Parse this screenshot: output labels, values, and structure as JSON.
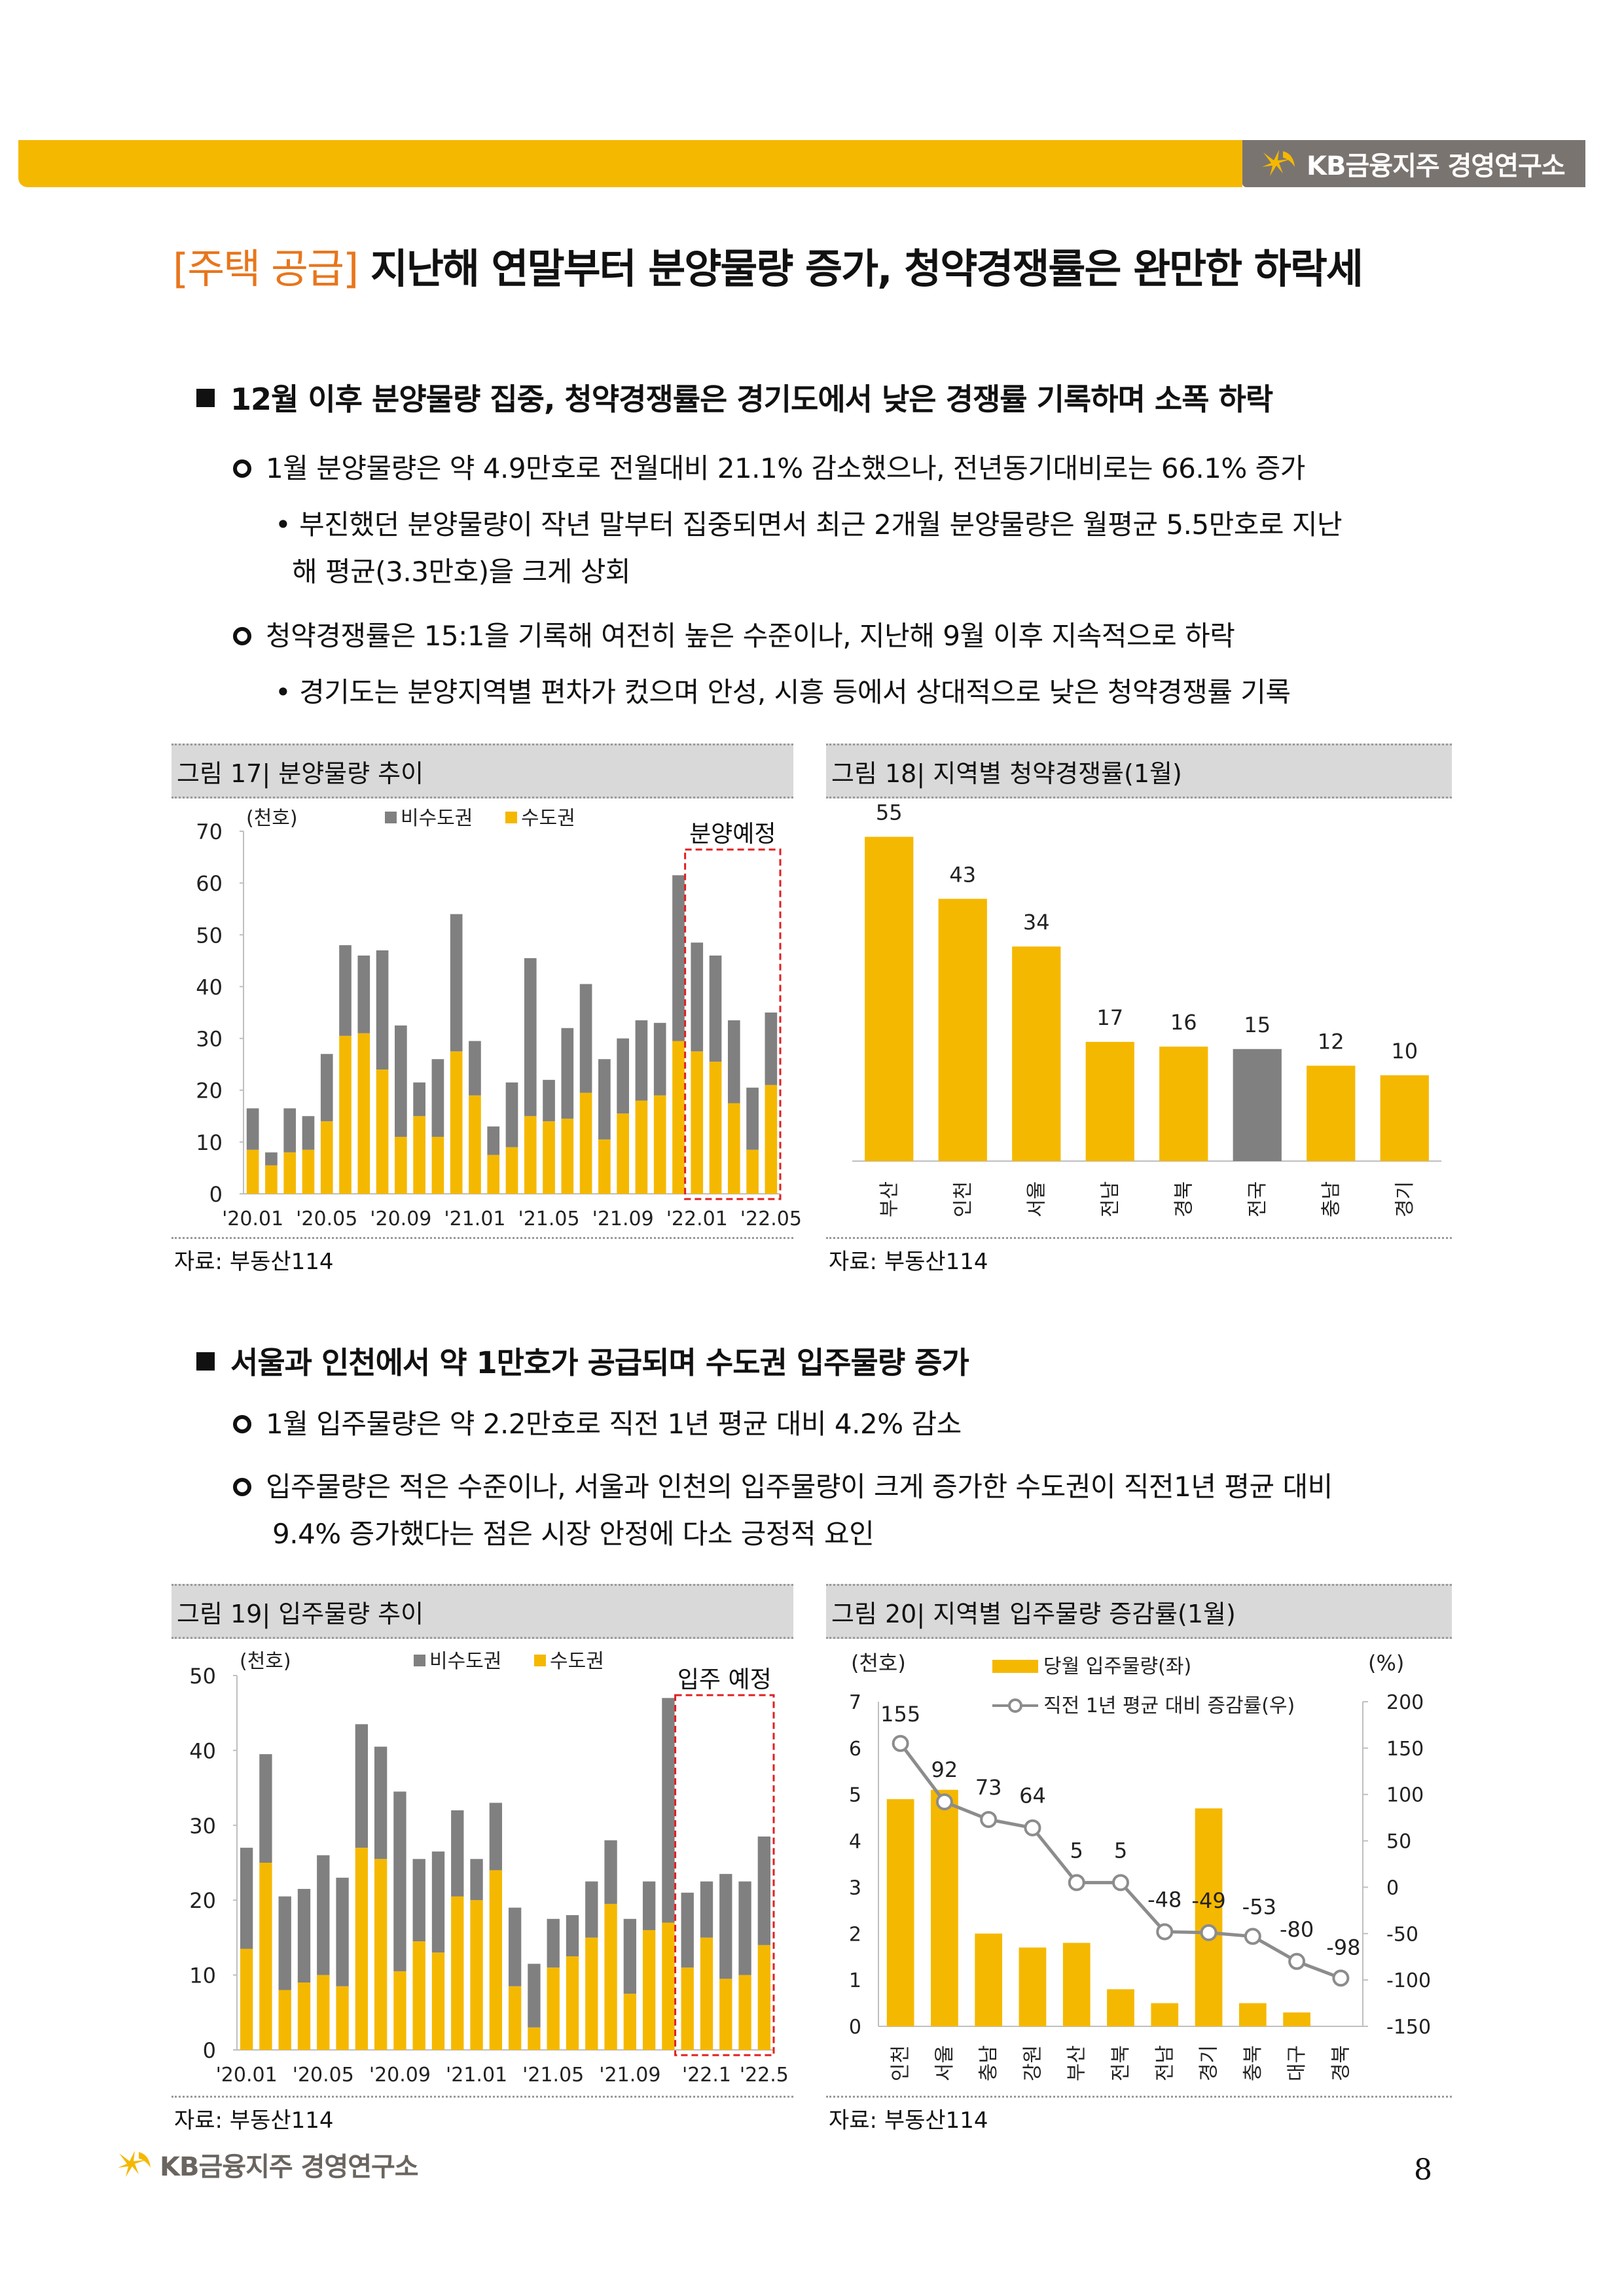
{
  "header": {
    "brand": "KB금융지주 경영연구소",
    "accent_color": "#f5b800",
    "brand_tab_color": "#7a7470"
  },
  "title": {
    "tag": "[주택 공급]",
    "text": " 지난해 연말부터 분양물량 증가, 청약경쟁률은 완만한 하락세"
  },
  "section1": {
    "heading": "12월 이후 분양물량 집중, 청약경쟁률은 경기도에서 낮은 경쟁률 기록하며 소폭 하락",
    "p1": "1월 분양물량은 약 4.9만호로 전월대비 21.1% 감소했으나, 전년동기대비로는 66.1% 증가",
    "p1_sub_line1": "• 부진했던 분양물량이 작년 말부터 집중되면서 최근 2개월 분양물량은 월평균 5.5만호로 지난",
    "p1_sub_line2": "해 평균(3.3만호)을 크게 상회",
    "p2": "청약경쟁률은 15:1을 기록해 여전히 높은 수준이나, 지난해 9월 이후 지속적으로 하락",
    "p2_sub": "• 경기도는 분양지역별 편차가 컸으며 안성, 시흥 등에서 상대적으로 낮은 청약경쟁률 기록"
  },
  "section2": {
    "heading": "서울과 인천에서 약 1만호가 공급되며 수도권 입주물량 증가",
    "p1": "1월 입주물량은 약 2.2만호로 직전 1년 평균 대비 4.2% 감소",
    "p2_line1": "입주물량은 적은 수준이나, 서울과 인천의 입주물량이 크게 증가한 수도권이 직전1년 평균 대비",
    "p2_line2": "9.4% 증가했다는 점은 시장 안정에 다소 긍정적 요인"
  },
  "figures": {
    "fig17": {
      "caption": "그림 17| 분양물량 추이",
      "source": "자료: 부동산114"
    },
    "fig18": {
      "caption": "그림 18| 지역별 청약경쟁률(1월)",
      "source": "자료: 부동산114"
    },
    "fig19": {
      "caption": "그림 19| 입주물량 추이",
      "source": "자료: 부동산114"
    },
    "fig20": {
      "caption": "그림 20| 지역별 입주물량 증감률(1월)",
      "source": "자료: 부동산114"
    }
  },
  "footer": {
    "brand": "KB금융지주 경영연구소",
    "page_number": "8"
  },
  "chart_data": [
    {
      "id": "fig17",
      "type": "bar",
      "stacked": true,
      "unit_label": "(천호)",
      "ylim": [
        0,
        70
      ],
      "yticks": [
        0,
        10,
        20,
        30,
        40,
        50,
        60,
        70
      ],
      "x_tick_labels": [
        "'20.01",
        "'20.05",
        "'20.09",
        "'21.01",
        "'21.05",
        "'21.09",
        "'22.01",
        "'22.05"
      ],
      "annotation": "분양예정",
      "colors": {
        "비수도권": "#808080",
        "수도권": "#f5b800"
      },
      "series": [
        {
          "name": "수도권",
          "values": [
            8.5,
            5.5,
            8,
            8.5,
            14,
            30.5,
            31,
            24,
            11,
            15,
            11,
            27.5,
            19,
            7.5,
            9,
            15,
            14,
            14.5,
            19.5,
            10.5,
            15.5,
            18,
            19,
            29.5,
            27.5,
            25.5,
            17.5,
            8.5,
            21
          ]
        },
        {
          "name": "비수도권",
          "values": [
            8,
            2.5,
            8.5,
            6.5,
            13,
            17.5,
            15,
            23,
            21.5,
            6.5,
            15,
            26.5,
            10.5,
            5.5,
            12.5,
            30.5,
            8,
            17.5,
            21,
            15.5,
            14.5,
            15.5,
            14,
            32,
            21,
            20.5,
            16,
            12,
            14
          ]
        }
      ]
    },
    {
      "id": "fig18",
      "type": "bar",
      "categories": [
        "부산",
        "인천",
        "서울",
        "전남",
        "경북",
        "전국",
        "충남",
        "경기"
      ],
      "values": [
        55,
        43,
        34,
        17,
        16,
        15,
        12,
        10
      ],
      "bar_values": [
        68,
        55,
        45,
        25,
        24,
        23.5,
        20,
        18
      ],
      "highlight": "전국",
      "colors": {
        "default": "#f5b800",
        "highlight": "#808080"
      }
    },
    {
      "id": "fig19",
      "type": "bar",
      "stacked": true,
      "unit_label": "(천호)",
      "ylim": [
        0,
        50
      ],
      "yticks": [
        0,
        10,
        20,
        30,
        40,
        50
      ],
      "x_tick_labels": [
        "'20.01",
        "'20.05",
        "'20.09",
        "'21.01",
        "'21.05",
        "'21.09",
        "'22.1",
        "'22.5"
      ],
      "annotation": "입주 예정",
      "colors": {
        "비수도권": "#808080",
        "수도권": "#f5b800"
      },
      "series": [
        {
          "name": "수도권",
          "values": [
            13.5,
            25,
            8,
            9,
            10,
            8.5,
            27,
            25.5,
            10.5,
            14.5,
            13,
            20.5,
            20,
            24,
            8.5,
            3,
            11,
            12.5,
            15,
            19.5,
            7.5,
            16,
            17,
            11,
            15,
            9.5,
            10,
            14
          ]
        },
        {
          "name": "비수도권",
          "values": [
            13.5,
            14.5,
            12.5,
            12.5,
            16,
            14.5,
            16.5,
            15,
            24,
            11,
            13.5,
            11.5,
            5.5,
            9,
            10.5,
            8.5,
            6.5,
            5.5,
            7.5,
            8.5,
            10,
            6.5,
            30,
            10,
            7.5,
            14,
            12.5,
            14.5
          ]
        }
      ]
    },
    {
      "id": "fig20",
      "type": "bar+line",
      "unit_left": "(천호)",
      "unit_right": "(%)",
      "categories": [
        "인천",
        "서울",
        "충남",
        "강원",
        "부산",
        "전북",
        "전남",
        "경기",
        "충북",
        "대구",
        "경북"
      ],
      "ylim_left": [
        0,
        7
      ],
      "yticks_left": [
        0,
        1,
        2,
        3,
        4,
        5,
        6,
        7
      ],
      "ylim_right": [
        -150,
        200
      ],
      "yticks_right": [
        -150,
        -100,
        -50,
        0,
        50,
        100,
        150,
        200
      ],
      "series": [
        {
          "name": "당월 입주물량(좌)",
          "type": "bar",
          "color": "#f5b800",
          "values": [
            4.9,
            5.1,
            2.0,
            1.7,
            1.8,
            0.8,
            0.5,
            4.7,
            0.5,
            0.3,
            0
          ]
        },
        {
          "name": "직전 1년 평균 대비 증감률(우)",
          "type": "line",
          "color": "#8c8c8c",
          "values": [
            155,
            92,
            73,
            64,
            5,
            5,
            -48,
            -49,
            -53,
            -80,
            -98
          ]
        }
      ]
    }
  ]
}
